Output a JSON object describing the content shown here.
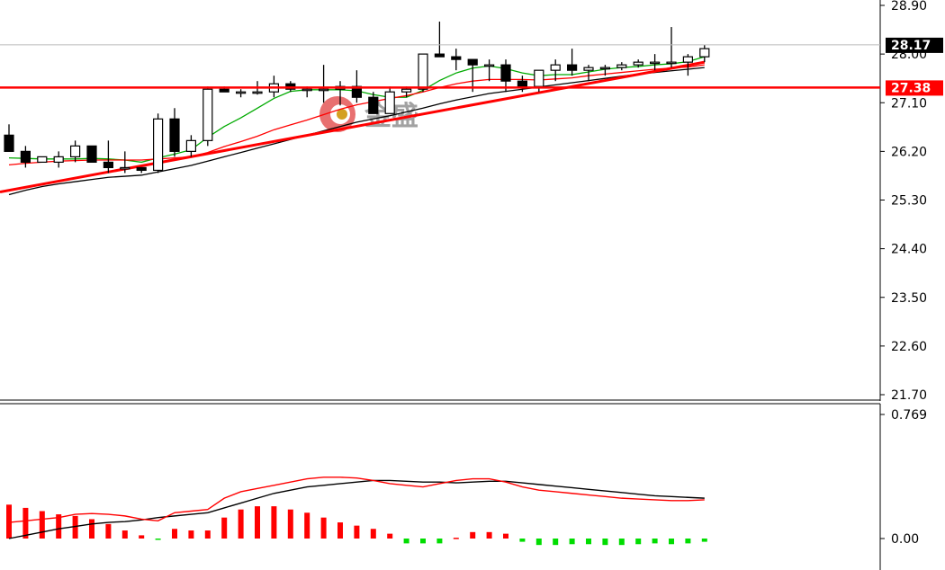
{
  "watermark": {
    "text": "金盛"
  },
  "chart_data": [
    {
      "type": "candlestick",
      "panel": "price",
      "y_ticks": [
        "28.90",
        "28.00",
        "27.10",
        "26.20",
        "25.30",
        "24.40",
        "23.50",
        "22.60",
        "21.70"
      ],
      "ylim": [
        21.7,
        28.9
      ],
      "current_price": {
        "label": "28.17",
        "value": 28.17,
        "color": "#000000"
      },
      "horizontal_line": {
        "label": "27.38",
        "value": 27.38,
        "color": "#ff0000"
      },
      "candles": [
        [
          26.5,
          26.7,
          26.2,
          26.2
        ],
        [
          26.2,
          26.3,
          25.9,
          26.0
        ],
        [
          26.0,
          26.1,
          26.0,
          26.1
        ],
        [
          26.0,
          26.2,
          25.9,
          26.1
        ],
        [
          26.1,
          26.4,
          26.0,
          26.3
        ],
        [
          26.3,
          26.3,
          26.0,
          26.0
        ],
        [
          26.0,
          26.4,
          25.8,
          25.9
        ],
        [
          25.9,
          26.2,
          25.8,
          25.9
        ],
        [
          25.9,
          25.9,
          25.8,
          25.85
        ],
        [
          25.85,
          26.9,
          25.8,
          26.8
        ],
        [
          26.8,
          27.0,
          26.1,
          26.2
        ],
        [
          26.2,
          26.5,
          26.1,
          26.4
        ],
        [
          26.4,
          27.4,
          26.3,
          27.35
        ],
        [
          27.35,
          27.4,
          27.3,
          27.3
        ],
        [
          27.3,
          27.35,
          27.2,
          27.3
        ],
        [
          27.3,
          27.5,
          27.25,
          27.3
        ],
        [
          27.3,
          27.6,
          27.2,
          27.45
        ],
        [
          27.45,
          27.5,
          27.3,
          27.35
        ],
        [
          27.35,
          27.4,
          27.2,
          27.35
        ],
        [
          27.35,
          27.8,
          27.1,
          27.35
        ],
        [
          27.35,
          27.5,
          27.05,
          27.4
        ],
        [
          27.4,
          27.7,
          27.1,
          27.2
        ],
        [
          27.2,
          27.3,
          26.9,
          26.9
        ],
        [
          26.9,
          27.4,
          26.9,
          27.3
        ],
        [
          27.3,
          27.4,
          27.2,
          27.35
        ],
        [
          27.35,
          28.0,
          27.3,
          28.0
        ],
        [
          28.0,
          28.6,
          27.95,
          27.95
        ],
        [
          27.95,
          28.1,
          27.7,
          27.9
        ],
        [
          27.9,
          27.9,
          27.3,
          27.8
        ],
        [
          27.8,
          27.9,
          27.5,
          27.8
        ],
        [
          27.8,
          27.9,
          27.3,
          27.5
        ],
        [
          27.5,
          27.6,
          27.3,
          27.4
        ],
        [
          27.4,
          27.7,
          27.3,
          27.7
        ],
        [
          27.7,
          27.9,
          27.5,
          27.8
        ],
        [
          27.8,
          28.1,
          27.6,
          27.7
        ],
        [
          27.7,
          27.8,
          27.5,
          27.75
        ],
        [
          27.75,
          27.8,
          27.6,
          27.75
        ],
        [
          27.75,
          27.85,
          27.7,
          27.8
        ],
        [
          27.8,
          27.9,
          27.75,
          27.85
        ],
        [
          27.85,
          28.0,
          27.7,
          27.85
        ],
        [
          27.85,
          28.5,
          27.75,
          27.85
        ],
        [
          27.85,
          28.0,
          27.6,
          27.95
        ],
        [
          27.95,
          28.17,
          27.85,
          28.1
        ]
      ],
      "overlays": [
        {
          "color": "#00aa00",
          "values": [
            26.08,
            26.07,
            26.06,
            26.06,
            26.06,
            26.07,
            26.06,
            26.04,
            26.0,
            26.08,
            26.15,
            26.23,
            26.46,
            26.66,
            26.82,
            27.0,
            27.18,
            27.31,
            27.34,
            27.34,
            27.34,
            27.32,
            27.25,
            27.2,
            27.2,
            27.33,
            27.51,
            27.65,
            27.74,
            27.78,
            27.73,
            27.65,
            27.6,
            27.62,
            27.62,
            27.67,
            27.72,
            27.75,
            27.77,
            27.8,
            27.82,
            27.86,
            27.95
          ]
        },
        {
          "color": "#ff0000",
          "values": [
            25.95,
            25.98,
            26.0,
            26.02,
            26.03,
            26.04,
            26.04,
            26.04,
            26.04,
            26.06,
            26.08,
            26.1,
            26.18,
            26.29,
            26.38,
            26.48,
            26.6,
            26.69,
            26.78,
            26.88,
            26.98,
            27.06,
            27.12,
            27.18,
            27.23,
            27.3,
            27.38,
            27.45,
            27.5,
            27.53,
            27.53,
            27.53,
            27.52,
            27.54,
            27.56,
            27.6,
            27.63,
            27.66,
            27.69,
            27.72,
            27.74,
            27.76,
            27.8
          ]
        },
        {
          "color": "#000000",
          "values": [
            25.4,
            25.48,
            25.55,
            25.6,
            25.64,
            25.68,
            25.72,
            25.74,
            25.76,
            25.82,
            25.88,
            25.94,
            26.02,
            26.1,
            26.18,
            26.26,
            26.34,
            26.42,
            26.5,
            26.58,
            26.66,
            26.74,
            26.8,
            26.86,
            26.93,
            27.0,
            27.08,
            27.15,
            27.21,
            27.27,
            27.31,
            27.35,
            27.39,
            27.43,
            27.47,
            27.51,
            27.55,
            27.59,
            27.63,
            27.66,
            27.69,
            27.72,
            27.75
          ]
        }
      ],
      "trendline": {
        "color": "#ff0000",
        "from": 25.45,
        "to": 27.85
      }
    },
    {
      "type": "bar",
      "panel": "macd",
      "y_ticks": [
        "0.769",
        "0.00"
      ],
      "ylim": [
        -0.05,
        0.769
      ],
      "histogram": [
        0.21,
        0.19,
        0.17,
        0.15,
        0.14,
        0.12,
        0.09,
        0.05,
        0.02,
        -0.005,
        0.06,
        0.05,
        0.05,
        0.13,
        0.18,
        0.2,
        0.2,
        0.18,
        0.16,
        0.13,
        0.1,
        0.08,
        0.06,
        0.03,
        -0.03,
        -0.03,
        -0.03,
        0.005,
        0.04,
        0.04,
        0.03,
        -0.02,
        -0.04,
        -0.04,
        -0.035,
        -0.035,
        -0.04,
        -0.04,
        -0.035,
        -0.03,
        -0.035,
        -0.03,
        -0.02
      ],
      "lines": [
        {
          "color": "#000000",
          "values": [
            0.0,
            0.02,
            0.04,
            0.06,
            0.075,
            0.09,
            0.1,
            0.105,
            0.115,
            0.13,
            0.14,
            0.15,
            0.16,
            0.19,
            0.22,
            0.25,
            0.28,
            0.3,
            0.32,
            0.33,
            0.34,
            0.35,
            0.36,
            0.36,
            0.355,
            0.35,
            0.35,
            0.345,
            0.35,
            0.355,
            0.355,
            0.345,
            0.335,
            0.325,
            0.315,
            0.305,
            0.295,
            0.285,
            0.275,
            0.265,
            0.26,
            0.255,
            0.25
          ]
        },
        {
          "color": "#ff0000",
          "values": [
            0.1,
            0.11,
            0.12,
            0.13,
            0.15,
            0.155,
            0.15,
            0.14,
            0.12,
            0.11,
            0.16,
            0.17,
            0.18,
            0.25,
            0.29,
            0.31,
            0.33,
            0.35,
            0.37,
            0.38,
            0.38,
            0.375,
            0.36,
            0.34,
            0.33,
            0.32,
            0.34,
            0.36,
            0.37,
            0.37,
            0.35,
            0.32,
            0.3,
            0.29,
            0.28,
            0.27,
            0.26,
            0.25,
            0.245,
            0.24,
            0.235,
            0.235,
            0.24
          ]
        }
      ]
    }
  ]
}
